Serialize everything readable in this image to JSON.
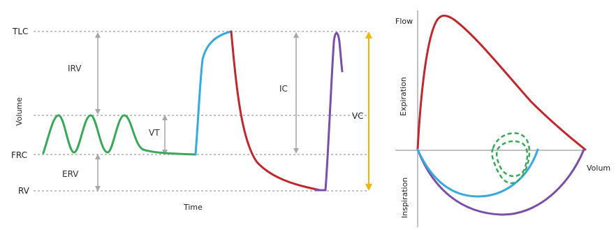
{
  "volume_panel": {
    "ylabel": "Volume",
    "xlabel": "Time",
    "levels": {
      "tlc": "TLC",
      "frc": "FRC",
      "rv": "RV"
    },
    "spans": {
      "irv": "IRV",
      "vt": "VT",
      "erv": "ERV",
      "ic": "IC",
      "vc": "VC"
    }
  },
  "flow_panel": {
    "flow_label": "Flow",
    "volume_label": "Volum",
    "expiration_label": "Expiration",
    "inspiration_label": "Inspiration"
  },
  "colors": {
    "tidal": "#3aa85a",
    "inspiration_fast": "#35a9e0",
    "expiration": "#c0282d",
    "inspiration_full": "#7b4fa8",
    "vc_arrow": "#f5b400",
    "span_arrow": "#a8a8a8",
    "guide_line": "#8a8a8a"
  }
}
